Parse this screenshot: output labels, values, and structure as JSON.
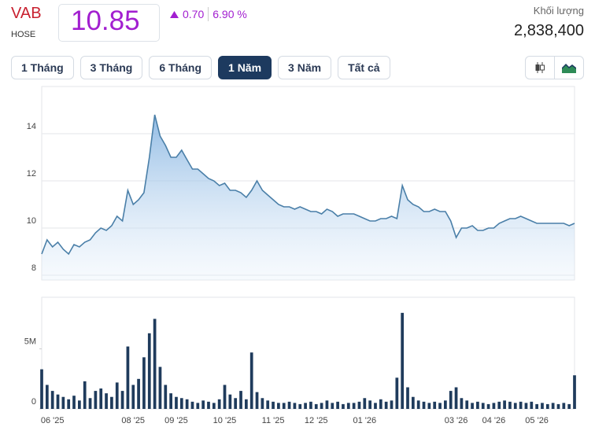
{
  "header": {
    "ticker": "VAB",
    "exchange": "HOSE",
    "price": "10.85",
    "change": "0.70",
    "change_pct": "6.90 %",
    "volume_label": "Khối lượng",
    "volume": "2,838,400"
  },
  "buttons": [
    "1 Tháng",
    "3 Tháng",
    "6 Tháng",
    "1 Năm",
    "3 Năm",
    "Tất cả"
  ],
  "active_button": 3,
  "chart_data": [
    {
      "type": "area",
      "color": "#4a7fa8",
      "values": [
        8.9,
        9.5,
        9.2,
        9.4,
        9.1,
        8.9,
        9.3,
        9.2,
        9.4,
        9.5,
        9.8,
        10.0,
        9.9,
        10.1,
        10.5,
        10.3,
        11.6,
        11.0,
        11.2,
        11.5,
        13.0,
        14.8,
        13.9,
        13.5,
        13.0,
        13.0,
        13.3,
        12.9,
        12.5,
        12.5,
        12.3,
        12.1,
        12.0,
        11.8,
        11.9,
        11.6,
        11.6,
        11.5,
        11.3,
        11.6,
        12.0,
        11.6,
        11.4,
        11.2,
        11.0,
        10.9,
        10.9,
        10.8,
        10.9,
        10.8,
        10.7,
        10.7,
        10.6,
        10.8,
        10.7,
        10.5,
        10.6,
        10.6,
        10.6,
        10.5,
        10.4,
        10.3,
        10.3,
        10.4,
        10.4,
        10.5,
        10.4,
        11.8,
        11.2,
        11.0,
        10.9,
        10.7,
        10.7,
        10.8,
        10.7,
        10.7,
        10.3,
        9.6,
        10.0,
        10.0,
        10.1,
        9.9,
        9.9,
        10.0,
        10.0,
        10.2,
        10.3,
        10.4,
        10.4,
        10.5,
        10.4,
        10.3,
        10.2,
        10.2,
        10.2,
        10.2,
        10.2,
        10.2,
        10.1,
        10.2
      ],
      "ylim": [
        7.8,
        16
      ],
      "yticks": [
        8,
        10,
        12,
        14
      ],
      "grid": true
    },
    {
      "type": "bar",
      "color": "#1f3b5c",
      "categories": [
        null,
        null,
        "06 '25",
        null,
        null,
        null,
        null,
        null,
        null,
        null,
        null,
        null,
        null,
        null,
        null,
        null,
        null,
        "08 '25",
        null,
        null,
        null,
        null,
        null,
        null,
        null,
        "09 '25",
        null,
        null,
        null,
        null,
        null,
        null,
        null,
        null,
        "10 '25",
        null,
        null,
        null,
        null,
        null,
        null,
        null,
        null,
        "11 '25",
        null,
        null,
        null,
        null,
        null,
        null,
        null,
        "12 '25",
        null,
        null,
        null,
        null,
        null,
        null,
        null,
        null,
        "01 '26",
        null,
        null,
        null,
        null,
        null,
        null,
        null,
        null,
        null,
        null,
        null,
        null,
        null,
        null,
        null,
        null,
        "03 '26",
        null,
        null,
        null,
        null,
        null,
        null,
        "04 '26",
        null,
        null,
        null,
        null,
        null,
        null,
        null,
        "05 '26",
        null,
        null,
        null,
        null,
        null,
        null,
        null
      ],
      "values": [
        3300000,
        2000000,
        1500000,
        1200000,
        1000000,
        800000,
        1100000,
        700000,
        2300000,
        900000,
        1500000,
        1700000,
        1300000,
        1000000,
        2200000,
        1500000,
        5200000,
        2000000,
        2500000,
        4300000,
        6300000,
        7500000,
        3500000,
        2000000,
        1300000,
        1000000,
        900000,
        800000,
        600000,
        500000,
        700000,
        600000,
        500000,
        800000,
        2000000,
        1200000,
        900000,
        1500000,
        800000,
        4700000,
        1400000,
        900000,
        700000,
        600000,
        500000,
        500000,
        600000,
        500000,
        400000,
        500000,
        600000,
        400000,
        500000,
        700000,
        500000,
        600000,
        400000,
        500000,
        500000,
        600000,
        900000,
        700000,
        500000,
        800000,
        600000,
        700000,
        2600000,
        8000000,
        1800000,
        1000000,
        700000,
        600000,
        500000,
        600000,
        500000,
        700000,
        1500000,
        1800000,
        900000,
        700000,
        500000,
        600000,
        500000,
        400000,
        500000,
        600000,
        700000,
        600000,
        500000,
        600000,
        500000,
        600000,
        400000,
        500000,
        400000,
        500000,
        400000,
        500000,
        400000,
        2800000
      ],
      "ylim": [
        0,
        9300000
      ],
      "yticks": [
        0,
        {
          "value": 5000000,
          "label": "5M"
        }
      ],
      "grid": false
    }
  ]
}
